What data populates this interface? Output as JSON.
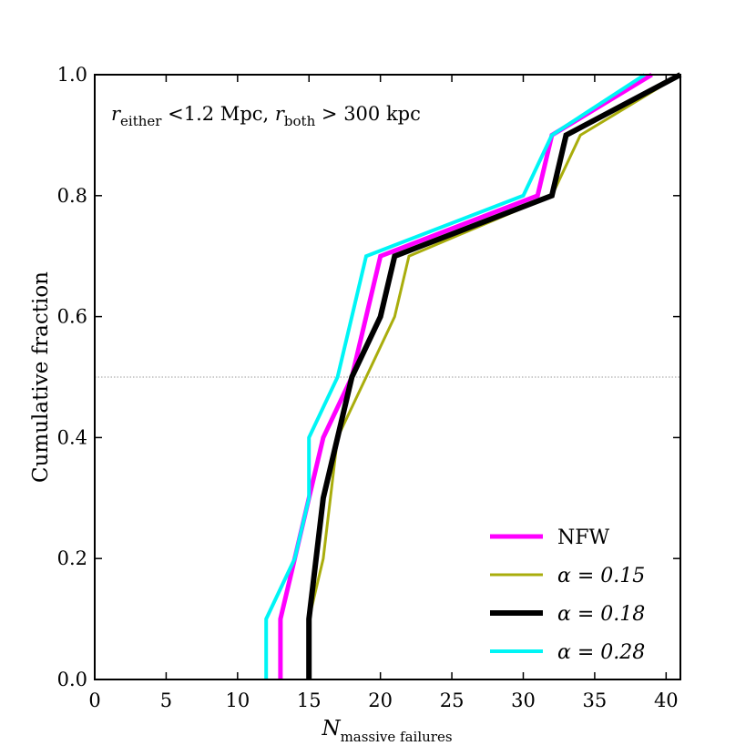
{
  "chart_data": {
    "type": "line",
    "xlabel_main": "N",
    "xlabel_sub": "massive failures",
    "ylabel": "Cumulative fraction",
    "xlim": [
      0,
      41
    ],
    "ylim": [
      0,
      1.0
    ],
    "xticks": [
      0,
      5,
      10,
      15,
      20,
      25,
      30,
      35,
      40
    ],
    "yticks": [
      0.0,
      0.2,
      0.4,
      0.6,
      0.8,
      1.0
    ],
    "xtick_labels": [
      "0",
      "5",
      "10",
      "15",
      "20",
      "25",
      "30",
      "35",
      "40"
    ],
    "ytick_labels": [
      "0.0",
      "0.2",
      "0.4",
      "0.6",
      "0.8",
      "1.0"
    ],
    "reference_line_y": 0.5,
    "annotation": {
      "r1": "r",
      "sub1": "either",
      "mid": " <1.2 Mpc, ",
      "r2": "r",
      "sub2": "both",
      "end": " > 300 kpc"
    },
    "series": [
      {
        "name": "NFW",
        "legend_text": "NFW",
        "legend_italic": false,
        "color": "#ff00ff",
        "points": [
          [
            13,
            0
          ],
          [
            13,
            0.1
          ],
          [
            14,
            0.2
          ],
          [
            15,
            0.3
          ],
          [
            16,
            0.4
          ],
          [
            17,
            0.45
          ],
          [
            18,
            0.5
          ],
          [
            19,
            0.6
          ],
          [
            20,
            0.7
          ],
          [
            31,
            0.8
          ],
          [
            32,
            0.9
          ],
          [
            39,
            1.0
          ]
        ]
      },
      {
        "name": "alpha=0.15",
        "legend_text": "α = 0.15",
        "legend_italic": true,
        "color": "#a9ad0c",
        "points": [
          [
            15,
            0
          ],
          [
            15,
            0.1
          ],
          [
            16,
            0.2
          ],
          [
            17,
            0.4
          ],
          [
            19,
            0.5
          ],
          [
            21,
            0.6
          ],
          [
            22,
            0.7
          ],
          [
            32,
            0.8
          ],
          [
            34,
            0.9
          ],
          [
            41,
            1.0
          ]
        ]
      },
      {
        "name": "alpha=0.18",
        "legend_text": "α = 0.18",
        "legend_italic": true,
        "color": "#000000",
        "points": [
          [
            15,
            0
          ],
          [
            15,
            0.1
          ],
          [
            16,
            0.3
          ],
          [
            17,
            0.4
          ],
          [
            18,
            0.5
          ],
          [
            20,
            0.6
          ],
          [
            21,
            0.7
          ],
          [
            32,
            0.8
          ],
          [
            33,
            0.9
          ],
          [
            41,
            1.0
          ]
        ]
      },
      {
        "name": "alpha=0.28",
        "legend_text": "α = 0.28",
        "legend_italic": true,
        "color": "#00f5f5",
        "points": [
          [
            12,
            0
          ],
          [
            12,
            0.1
          ],
          [
            14,
            0.2
          ],
          [
            15,
            0.3
          ],
          [
            15,
            0.4
          ],
          [
            16,
            0.45
          ],
          [
            17,
            0.5
          ],
          [
            19,
            0.7
          ],
          [
            30,
            0.8
          ],
          [
            32,
            0.9
          ],
          [
            38.5,
            1.0
          ]
        ]
      }
    ]
  }
}
